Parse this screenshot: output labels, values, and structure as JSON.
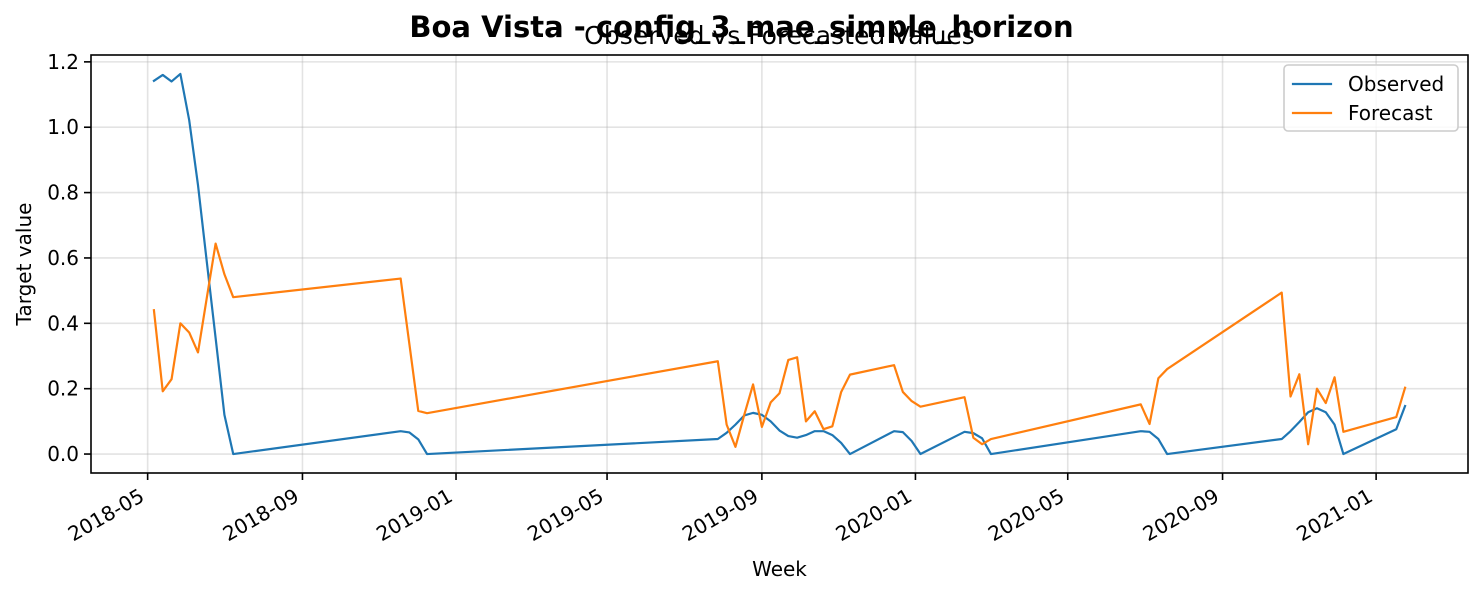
{
  "chart_data": {
    "type": "line",
    "title": "Boa Vista - config_3_mae_simple_horizon",
    "subtitle": "Observed vs Forecasted Values",
    "xlabel": "Week",
    "ylabel": "Target value",
    "xlim": [
      "2018-03-17",
      "2021-03-15"
    ],
    "ylim": [
      -0.058,
      1.221
    ],
    "xticks": [
      "2018-05",
      "2018-09",
      "2019-01",
      "2019-05",
      "2019-09",
      "2020-01",
      "2020-05",
      "2020-09",
      "2021-01"
    ],
    "yticks": [
      "0.0",
      "0.2",
      "0.4",
      "0.6",
      "0.8",
      "1.0",
      "1.2"
    ],
    "grid": true,
    "legend_position": "upper right",
    "x": [
      "2018-05-06",
      "2018-05-13",
      "2018-05-20",
      "2018-05-27",
      "2018-06-03",
      "2018-06-10",
      "2018-06-17",
      "2018-06-24",
      "2018-07-01",
      "2018-07-08",
      "2018-11-18",
      "2018-11-25",
      "2018-12-02",
      "2018-12-09",
      "2019-07-28",
      "2019-08-04",
      "2019-08-11",
      "2019-08-18",
      "2019-08-25",
      "2019-09-01",
      "2019-09-08",
      "2019-09-15",
      "2019-09-22",
      "2019-09-29",
      "2019-10-06",
      "2019-10-13",
      "2019-10-20",
      "2019-10-27",
      "2019-11-03",
      "2019-11-10",
      "2019-12-15",
      "2019-12-22",
      "2019-12-29",
      "2020-01-05",
      "2020-02-09",
      "2020-02-16",
      "2020-02-23",
      "2020-03-01",
      "2020-06-28",
      "2020-07-05",
      "2020-07-12",
      "2020-07-19",
      "2020-10-18",
      "2020-10-25",
      "2020-11-01",
      "2020-11-08",
      "2020-11-15",
      "2020-11-22",
      "2020-11-29",
      "2020-12-06",
      "2021-01-17",
      "2021-01-24"
    ],
    "series": [
      {
        "name": "Observed",
        "color": "#1f77b4",
        "values": [
          1.142,
          1.16,
          1.14,
          1.163,
          1.022,
          0.823,
          0.588,
          0.355,
          0.12,
          0.0,
          0.07,
          0.066,
          0.045,
          0.0,
          0.046,
          0.065,
          0.09,
          0.118,
          0.126,
          0.12,
          0.1,
          0.072,
          0.055,
          0.05,
          0.058,
          0.07,
          0.07,
          0.058,
          0.034,
          0.0,
          0.07,
          0.067,
          0.04,
          0.0,
          0.068,
          0.064,
          0.048,
          0.0,
          0.07,
          0.068,
          0.046,
          0.0,
          0.046,
          0.07,
          0.098,
          0.128,
          0.14,
          0.128,
          0.09,
          0.0,
          0.076,
          0.147
        ]
      },
      {
        "name": "Forecast",
        "color": "#ff7f0e",
        "values": [
          0.44,
          0.192,
          0.229,
          0.4,
          0.372,
          0.311,
          0.478,
          0.644,
          0.55,
          0.48,
          0.537,
          0.335,
          0.132,
          0.125,
          0.284,
          0.09,
          0.022,
          0.12,
          0.213,
          0.083,
          0.158,
          0.186,
          0.288,
          0.296,
          0.1,
          0.131,
          0.076,
          0.085,
          0.19,
          0.243,
          0.272,
          0.19,
          0.162,
          0.145,
          0.174,
          0.05,
          0.03,
          0.046,
          0.152,
          0.092,
          0.232,
          0.26,
          0.494,
          0.176,
          0.244,
          0.03,
          0.2,
          0.156,
          0.235,
          0.068,
          0.113,
          0.203
        ]
      }
    ]
  }
}
